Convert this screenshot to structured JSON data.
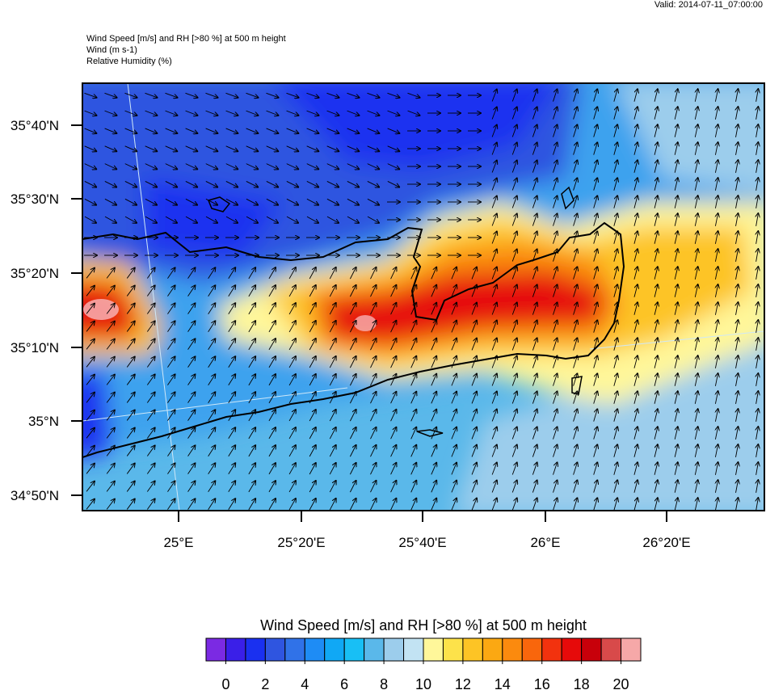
{
  "valid": "Valid: 2014-07-11_07:00:00",
  "header": {
    "lines": [
      "Wind Speed [m/s] and RH [>80 %] at 500 m height",
      "Wind   (m s-1)",
      "Relative Humidity   (%)"
    ]
  },
  "map": {
    "lat_labels": [
      "35°40'N",
      "35°30'N",
      "35°20'N",
      "35°10'N",
      "35°N",
      "34°50'N"
    ],
    "lon_labels": [
      "25°E",
      "25°20'E",
      "25°40'E",
      "26°E",
      "26°20'E"
    ]
  },
  "colorbar": {
    "title": "Wind Speed [m/s] and RH [>80 %] at 500 m height",
    "range": [
      -1,
      21
    ],
    "ticks": [
      0,
      2,
      4,
      6,
      8,
      10,
      12,
      14,
      16,
      18,
      20
    ],
    "colors": [
      "#7b2ae3",
      "#3a1fe8",
      "#1a30f0",
      "#2f55e0",
      "#3072e8",
      "#1e8cf5",
      "#10a8f5",
      "#18bff5",
      "#5ab8ea",
      "#9ccdec",
      "#c2e3f3",
      "#fff79a",
      "#fde24a",
      "#fdc425",
      "#fba812",
      "#fb8a0e",
      "#f9660c",
      "#f2320e",
      "#e60a0a",
      "#c8000a",
      "#d84a4a",
      "#f6a8a8"
    ]
  }
}
